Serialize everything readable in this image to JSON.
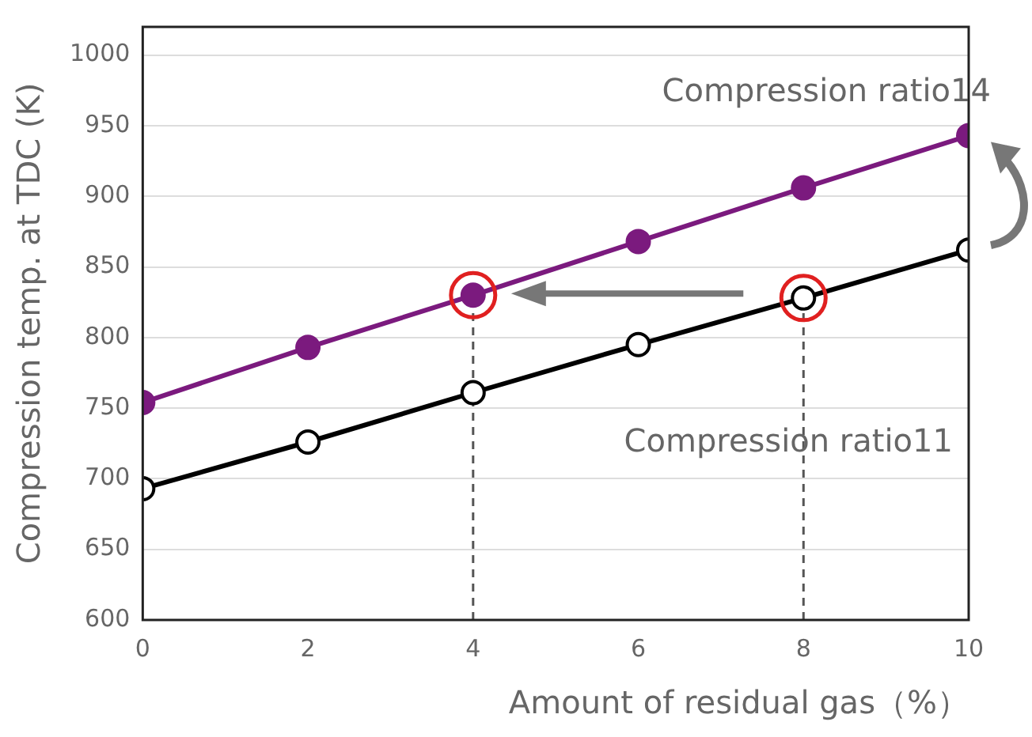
{
  "chart_data": {
    "type": "line",
    "xlabel": "Amount of residual gas（%）",
    "ylabel": "Compression temp. at TDC (K)",
    "x": [
      0,
      2,
      4,
      6,
      8,
      10
    ],
    "series": [
      {
        "name": "Compression ratio14",
        "color": "#7b1a7e",
        "values": [
          754,
          793,
          830,
          868,
          906,
          943
        ],
        "marker": "circle"
      },
      {
        "name": "Compression ratio11",
        "color": "#000000",
        "values": [
          693,
          726,
          761,
          795,
          828,
          862
        ],
        "marker": "circle"
      }
    ],
    "xlim": [
      0,
      10
    ],
    "xticks": [
      0,
      2,
      4,
      6,
      8,
      10
    ],
    "ylim": [
      600,
      1020
    ],
    "yticks": [
      600,
      650,
      700,
      750,
      800,
      850,
      900,
      950,
      1000
    ],
    "ref_lines": [
      {
        "axis": "x",
        "value": 4,
        "line_style": "dashed",
        "color": "#555555"
      },
      {
        "axis": "x",
        "value": 8,
        "line_style": "dashed",
        "color": "#555555"
      }
    ],
    "grid": "y",
    "legend": false,
    "line_style": "solid"
  }
}
